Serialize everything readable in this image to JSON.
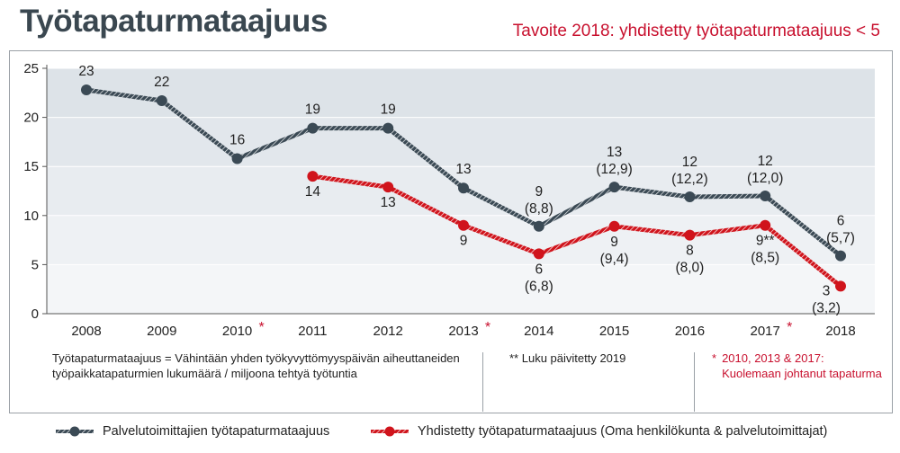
{
  "title": "Työtapaturmataajuus",
  "goal_text": "Tavoite 2018: yhdistetty työtapaturmataajuus < 5",
  "colors": {
    "series1": "#3b4a55",
    "series2": "#d0141c",
    "accent": "#c8102e",
    "band": "#dde3e8"
  },
  "chart_data": {
    "type": "line",
    "ylim": [
      0,
      25
    ],
    "y_ticks": [
      "0",
      "5",
      "10",
      "15",
      "20",
      "25"
    ],
    "categories": [
      "2008",
      "2009",
      "2010",
      "2011",
      "2012",
      "2013",
      "2014",
      "2015",
      "2016",
      "2017",
      "2018"
    ],
    "category_marks": [
      "",
      "",
      "*",
      "",
      "",
      "*",
      "",
      "",
      "",
      "*",
      ""
    ],
    "grid": true,
    "legend_position": "bottom",
    "series": [
      {
        "name": "Palvelutoimittajien työtapaturmataajuus",
        "x": [
          "2008",
          "2009",
          "2010",
          "2011",
          "2012",
          "2013",
          "2014",
          "2015",
          "2016",
          "2017",
          "2018"
        ],
        "values": [
          22.8,
          21.7,
          15.8,
          18.9,
          18.9,
          12.8,
          8.9,
          12.9,
          11.9,
          12.0,
          5.9
        ],
        "labels": [
          "23",
          "22",
          "16",
          "19",
          "19",
          "13",
          "9\n(8,8)",
          "13\n(12,9)",
          "12\n(12,2)",
          "12\n(12,0)",
          "6\n(5,7)"
        ],
        "color": "#3b4a55"
      },
      {
        "name": "Yhdistetty työtapaturmataajuus (Oma henkilökunta & palvelutoimittajat)",
        "x": [
          "2011",
          "2012",
          "2013",
          "2014",
          "2015",
          "2016",
          "2017",
          "2018"
        ],
        "values": [
          14.0,
          12.9,
          9.0,
          6.1,
          8.9,
          8.0,
          9.0,
          2.8
        ],
        "labels": [
          "14",
          "13",
          "9",
          "6\n(6,8)",
          "9\n(9,4)",
          "8\n(8,0)",
          "9**\n(8,5)",
          "3\n(3,2)"
        ],
        "color": "#d0141c"
      }
    ]
  },
  "notes": {
    "definition": "Työtapaturmataajuus = Vähintään yhden työkyvyttömyyspäivän aiheuttaneiden työpaikkatapaturmien lukumäärä / miljoona tehtyä työtuntia",
    "update": "** Luku päivitetty 2019",
    "fatal_star": "*",
    "fatal": "2010, 2013 & 2017: Kuolemaan johtanut tapaturma"
  },
  "legend": {
    "series1": "Palvelutoimittajien työtapaturmataajuus",
    "series2": "Yhdistetty työtapaturmataajuus (Oma henkilökunta & palvelutoimittajat)"
  }
}
